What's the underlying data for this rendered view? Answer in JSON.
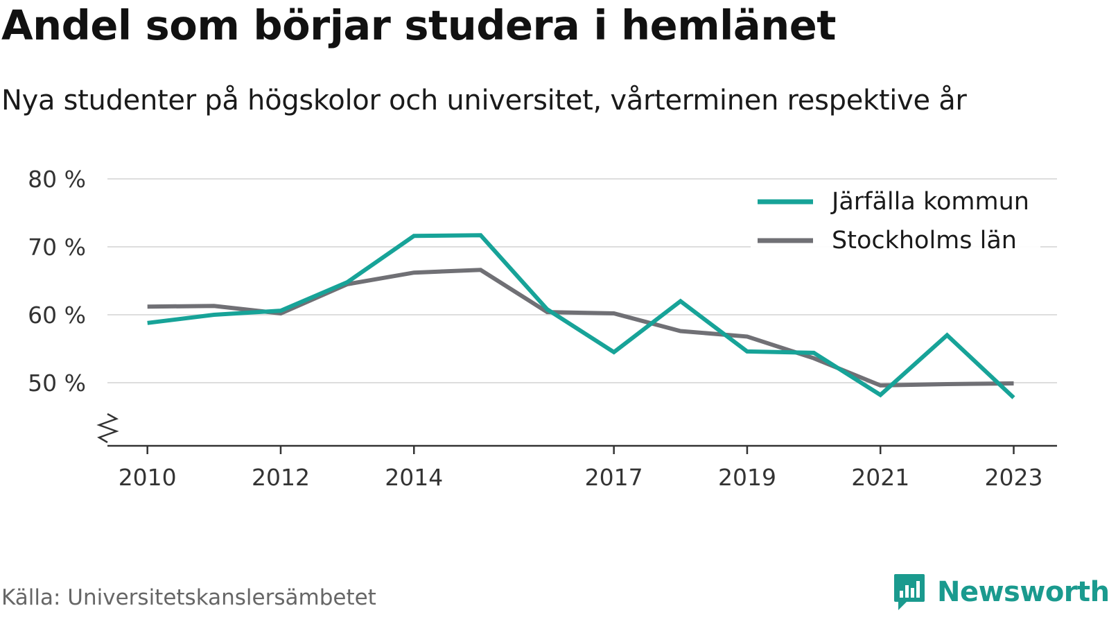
{
  "title": "Andel som börjar studera i hemlänet",
  "subtitle": "Nya studenter på högskolor och universitet, vårterminen respektive år",
  "source": "Källa: Universitetskanslersämbetet",
  "brand": "Newsworthy",
  "colors": {
    "jarfalla": "#17a398",
    "stockholm": "#707075",
    "grid": "#dddddd",
    "axis": "#333333",
    "brand": "#1a9a8e"
  },
  "chart_data": {
    "type": "line",
    "x": [
      2010,
      2011,
      2012,
      2013,
      2014,
      2015,
      2016,
      2017,
      2018,
      2019,
      2020,
      2021,
      2022,
      2023
    ],
    "x_tick_labels": [
      "2010",
      "2012",
      "2014",
      "2017",
      "2019",
      "2021",
      "2023"
    ],
    "y_ticks": [
      50,
      60,
      70,
      80
    ],
    "y_tick_labels": [
      "50 %",
      "60 %",
      "70 %",
      "80 %"
    ],
    "ylim": [
      40,
      80
    ],
    "xlim": [
      2009.4,
      2023.65
    ],
    "y_axis_break": true,
    "grid": true,
    "legend_position": "top-right",
    "series": [
      {
        "name": "Järfälla kommun",
        "color": "#17a398",
        "values": [
          58.8,
          60.0,
          60.6,
          64.8,
          71.6,
          71.7,
          60.8,
          54.5,
          62.0,
          54.6,
          54.4,
          48.2,
          57.0,
          47.8
        ]
      },
      {
        "name": "Stockholms län",
        "color": "#707075",
        "values": [
          61.2,
          61.3,
          60.2,
          64.5,
          66.2,
          66.6,
          60.4,
          60.2,
          57.6,
          56.8,
          53.6,
          49.6,
          49.8,
          49.9
        ]
      }
    ]
  }
}
